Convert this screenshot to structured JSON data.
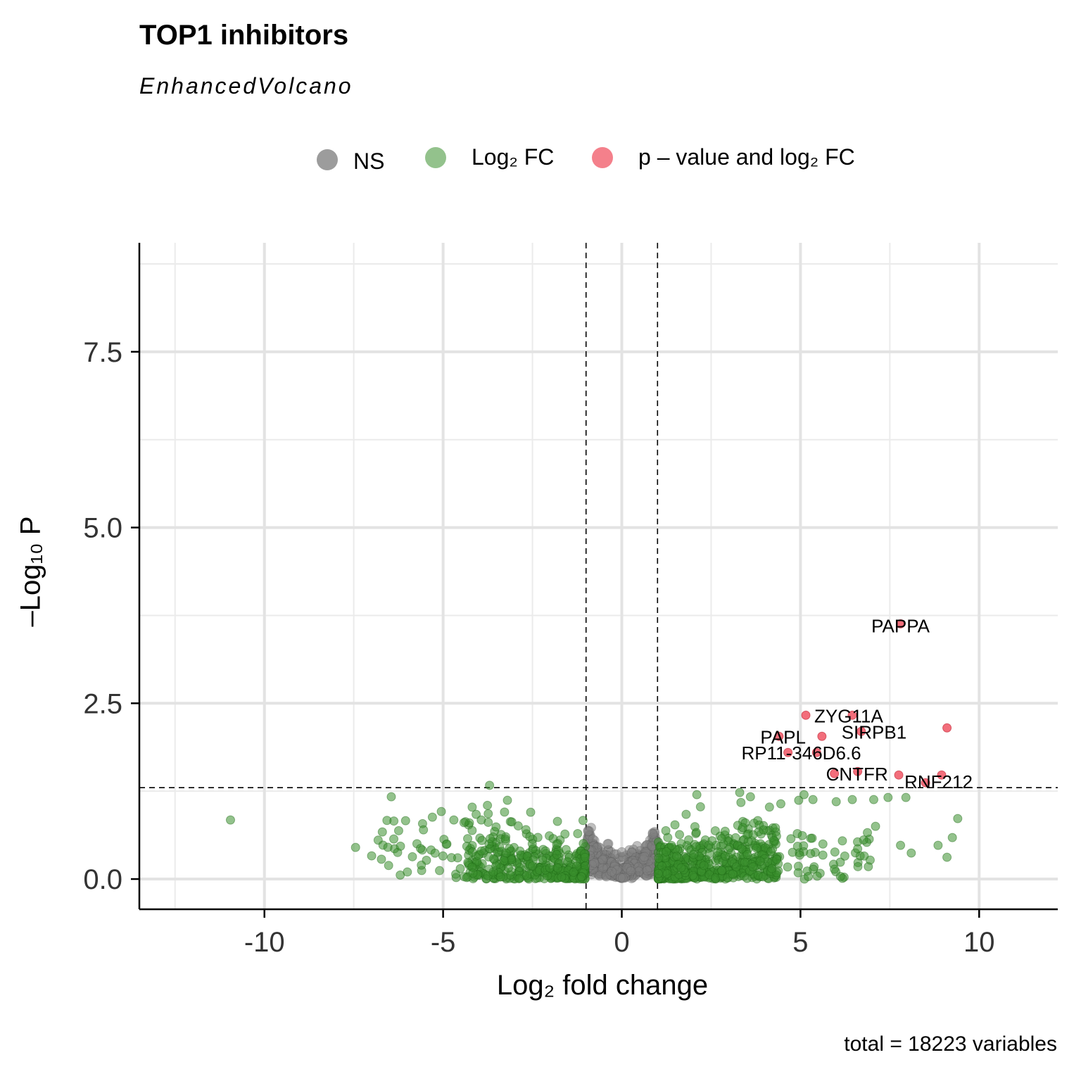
{
  "title": "TOP1 inhibitors",
  "subtitle": "EnhancedVolcano",
  "caption": "total = 18223 variables",
  "legend": [
    {
      "label": "NS",
      "color": "#808080"
    },
    {
      "label": "Log₂ FC",
      "color": "#3a8f2e"
    },
    {
      "label": "p – value and log₂ FC",
      "color": "#ef4a5a"
    }
  ],
  "chart_data": {
    "type": "scatter",
    "title": "TOP1 inhibitors",
    "subtitle": "EnhancedVolcano",
    "xlabel": "Log₂ fold change",
    "ylabel": "–Log₁₀ P",
    "xlim": [
      -13.5,
      12.2
    ],
    "ylim": [
      -0.43,
      9.05
    ],
    "xticks": [
      -10,
      -5,
      0,
      5,
      10
    ],
    "xtick_labels": [
      "-10",
      "-5",
      "0",
      "5",
      "10"
    ],
    "yticks": [
      0.0,
      2.5,
      5.0,
      7.5
    ],
    "ytick_labels": [
      "0.0",
      "2.5",
      "5.0",
      "7.5"
    ],
    "thresholds": {
      "log2fc": [
        -1,
        1
      ],
      "neg_log10_p": 1.3
    },
    "grid": true,
    "legend_position": "top",
    "colors": {
      "NS": "#808080",
      "FC": "#3a8f2e",
      "sig": "#ef4a5a"
    },
    "labeled_points": [
      {
        "label": "PAPPA",
        "x": 7.8,
        "y": 3.63
      },
      {
        "label": "ZYG11A",
        "x": 5.15,
        "y": 2.33
      },
      {
        "label": "SIRPB1",
        "x": 6.7,
        "y": 2.1
      },
      {
        "label": "PAPL",
        "x": 4.4,
        "y": 2.03
      },
      {
        "label": "RP11-346D6.6",
        "x": 4.65,
        "y": 1.8
      },
      {
        "label": "CNTFR",
        "x": 5.95,
        "y": 1.5
      },
      {
        "label": "RNF212",
        "x": 8.5,
        "y": 1.37
      }
    ],
    "sig_points": [
      {
        "x": 6.45,
        "y": 2.33
      },
      {
        "x": 5.6,
        "y": 2.03
      },
      {
        "x": 9.1,
        "y": 2.15
      },
      {
        "x": 5.45,
        "y": 1.8
      },
      {
        "x": 6.6,
        "y": 1.53
      },
      {
        "x": 7.75,
        "y": 1.48
      },
      {
        "x": 8.95,
        "y": 1.48
      }
    ],
    "fc_points": [
      {
        "x": -10.95,
        "y": 0.84
      },
      {
        "x": -6.45,
        "y": 1.17
      },
      {
        "x": -5.05,
        "y": 0.96
      },
      {
        "x": -7.45,
        "y": 0.45
      },
      {
        "x": -7.0,
        "y": 0.33
      },
      {
        "x": -6.7,
        "y": 0.67
      },
      {
        "x": -6.05,
        "y": 0.83
      },
      {
        "x": -5.55,
        "y": 0.7
      },
      {
        "x": -5.3,
        "y": 0.88
      },
      {
        "x": -4.7,
        "y": 0.84
      },
      {
        "x": -3.2,
        "y": 1.12
      },
      {
        "x": -2.55,
        "y": 0.95
      },
      {
        "x": -1.8,
        "y": 0.82
      },
      {
        "x": 1.8,
        "y": 0.92
      },
      {
        "x": 2.1,
        "y": 1.2
      },
      {
        "x": 3.3,
        "y": 1.23
      },
      {
        "x": 3.6,
        "y": 1.17
      },
      {
        "x": 4.45,
        "y": 1.07
      },
      {
        "x": 4.95,
        "y": 1.12
      },
      {
        "x": 5.1,
        "y": 1.2
      },
      {
        "x": 5.35,
        "y": 1.13
      },
      {
        "x": 6.0,
        "y": 1.1
      },
      {
        "x": 6.45,
        "y": 1.13
      },
      {
        "x": 7.05,
        "y": 1.13
      },
      {
        "x": 7.45,
        "y": 1.16
      },
      {
        "x": 7.95,
        "y": 1.16
      },
      {
        "x": 9.4,
        "y": 0.86
      },
      {
        "x": 9.25,
        "y": 0.59
      },
      {
        "x": 8.85,
        "y": 0.48
      },
      {
        "x": 9.1,
        "y": 0.31
      },
      {
        "x": 7.8,
        "y": 0.48
      },
      {
        "x": 8.1,
        "y": 0.37
      },
      {
        "x": 6.95,
        "y": 0.27
      },
      {
        "x": 5.95,
        "y": 0.14
      },
      {
        "x": 7.1,
        "y": 0.75
      },
      {
        "x": 6.6,
        "y": 0.43
      },
      {
        "x": -6.0,
        "y": 0.1
      },
      {
        "x": -5.1,
        "y": 0.12
      },
      {
        "x": -3.6,
        "y": 0.1
      },
      {
        "x": 2.8,
        "y": 0.12
      },
      {
        "x": 4.2,
        "y": 0.15
      }
    ],
    "cloud_note": "dense clouds of non-significant points around |log2FC| < 4, -log10 P < 1"
  }
}
